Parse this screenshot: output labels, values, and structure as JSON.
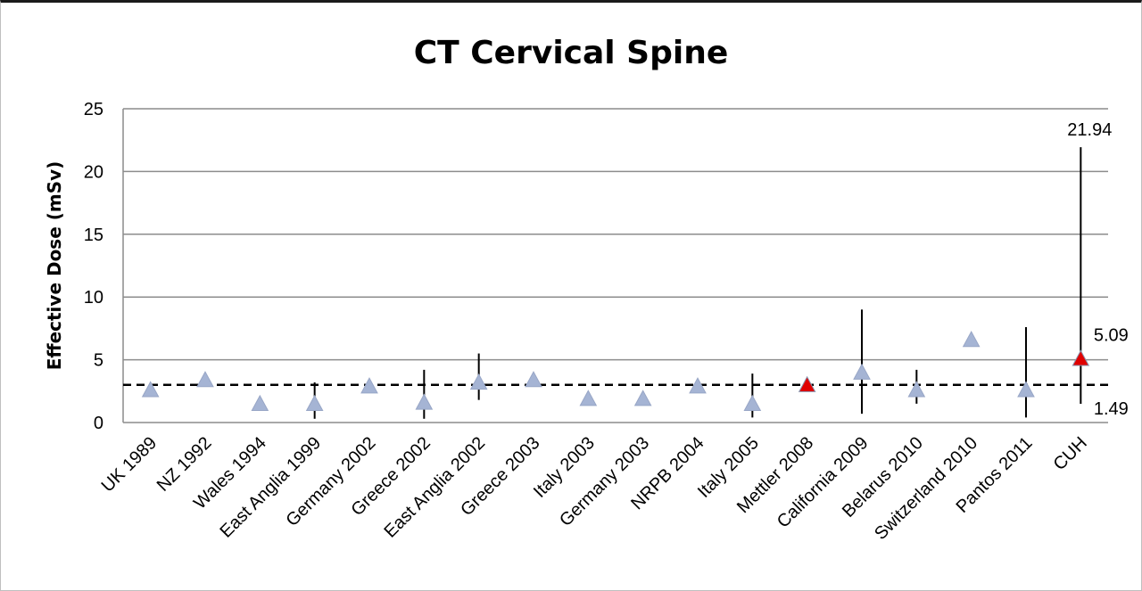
{
  "chart_data": {
    "type": "scatter",
    "title": "CT Cervical Spine",
    "ylabel": "Effective Dose (mSv)",
    "xlabel": "",
    "ylim": [
      0,
      25
    ],
    "yticks": [
      0,
      5,
      10,
      15,
      20,
      25
    ],
    "grid": true,
    "reference_line": 3,
    "categories": [
      "UK 1989",
      "NZ 1992",
      "Wales 1994",
      "East Anglia 1999",
      "Germany 2002",
      "Greece 2002",
      "East Anglia 2002",
      "Greece 2003",
      "Italy 2003",
      "Germany 2003",
      "NRPB 2004",
      "Italy 2005",
      "Mettler 2008",
      "California 2009",
      "Belarus 2010",
      "Switzerland 2010",
      "Pantos 2011",
      "CUH"
    ],
    "values": [
      2.6,
      3.4,
      1.5,
      1.5,
      2.9,
      1.6,
      3.2,
      3.4,
      1.9,
      1.9,
      2.9,
      1.5,
      3.0,
      4.0,
      2.6,
      6.6,
      2.6,
      5.09
    ],
    "ranges": [
      null,
      null,
      null,
      [
        0.3,
        3.2
      ],
      null,
      [
        0.3,
        4.2
      ],
      [
        1.8,
        5.5
      ],
      null,
      null,
      null,
      null,
      [
        0.4,
        3.9
      ],
      null,
      [
        0.7,
        9.0
      ],
      [
        1.5,
        4.2
      ],
      null,
      [
        0.4,
        7.6
      ],
      [
        1.49,
        21.94
      ]
    ],
    "highlight": [
      "Mettler 2008",
      "CUH"
    ],
    "annotations": [
      "21.94",
      "5.09",
      "1.49"
    ],
    "colors": {
      "marker": "#a5b4d4",
      "highlight": "#e00000",
      "gridline": "#8c8c8c",
      "reference": "#000000"
    }
  }
}
